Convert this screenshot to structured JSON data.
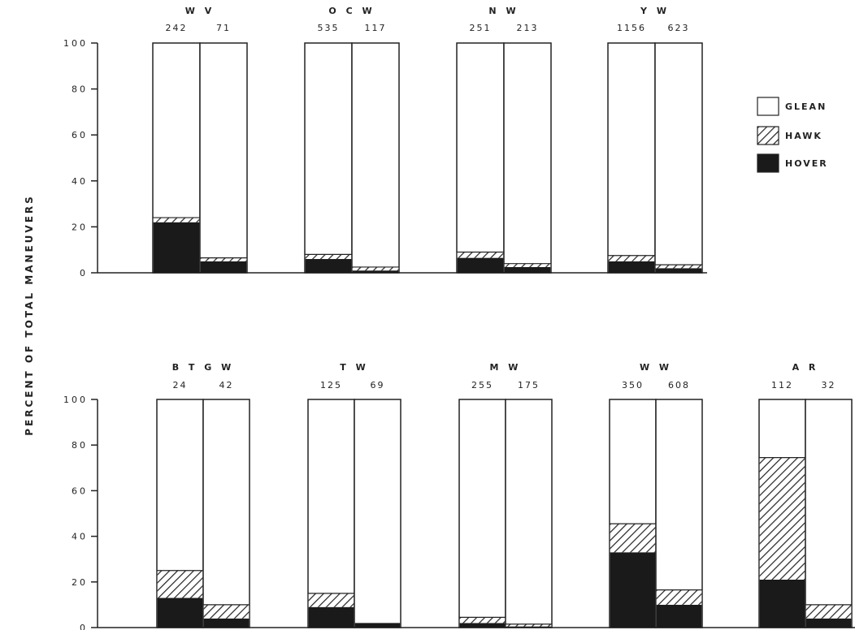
{
  "chart_data": {
    "type": "bar",
    "stacked": true,
    "ylabel": "PERCENT OF TOTAL MANEUVERS",
    "y_ticks": [
      "0",
      "20",
      "40",
      "60",
      "80",
      "100"
    ],
    "ylim": [
      0,
      100
    ],
    "legend": {
      "placement": "right",
      "entries": [
        {
          "key": "glean",
          "label": "GLEAN"
        },
        {
          "key": "hawk",
          "label": "HAWK"
        },
        {
          "key": "hover",
          "label": "HOVER"
        }
      ]
    },
    "panels": [
      {
        "groups": [
          {
            "species": "W V",
            "bars": [
              {
                "n": "242",
                "hover": 22,
                "hawk": 2
              },
              {
                "n": "71",
                "hover": 5,
                "hawk": 1.5
              }
            ]
          },
          {
            "species": "O C W",
            "bars": [
              {
                "n": "535",
                "hover": 6,
                "hawk": 2
              },
              {
                "n": "117",
                "hover": 1,
                "hawk": 1.5
              }
            ]
          },
          {
            "species": "N W",
            "bars": [
              {
                "n": "251",
                "hover": 6.5,
                "hawk": 2.5
              },
              {
                "n": "213",
                "hover": 2.5,
                "hawk": 1.5
              }
            ]
          },
          {
            "species": "Y W",
            "bars": [
              {
                "n": "1156",
                "hover": 5,
                "hawk": 2.5
              },
              {
                "n": "623",
                "hover": 2,
                "hawk": 1.5
              }
            ]
          }
        ]
      },
      {
        "groups": [
          {
            "species": "B T G W",
            "bars": [
              {
                "n": "24",
                "hover": 13,
                "hawk": 12
              },
              {
                "n": "42",
                "hover": 4,
                "hawk": 6
              }
            ]
          },
          {
            "species": "T W",
            "bars": [
              {
                "n": "125",
                "hover": 9,
                "hawk": 6
              },
              {
                "n": "69",
                "hover": 2,
                "hawk": 0
              }
            ]
          },
          {
            "species": "M W",
            "bars": [
              {
                "n": "255",
                "hover": 2,
                "hawk": 2.5
              },
              {
                "n": "175",
                "hover": 0.5,
                "hawk": 1
              }
            ]
          },
          {
            "species": "W W",
            "bars": [
              {
                "n": "350",
                "hover": 33,
                "hawk": 12.5
              },
              {
                "n": "608",
                "hover": 10,
                "hawk": 6.5
              }
            ]
          },
          {
            "species": "A R",
            "bars": [
              {
                "n": "112",
                "hover": 21,
                "hawk": 53.5
              },
              {
                "n": "32",
                "hover": 4,
                "hawk": 6
              }
            ]
          }
        ]
      }
    ]
  }
}
